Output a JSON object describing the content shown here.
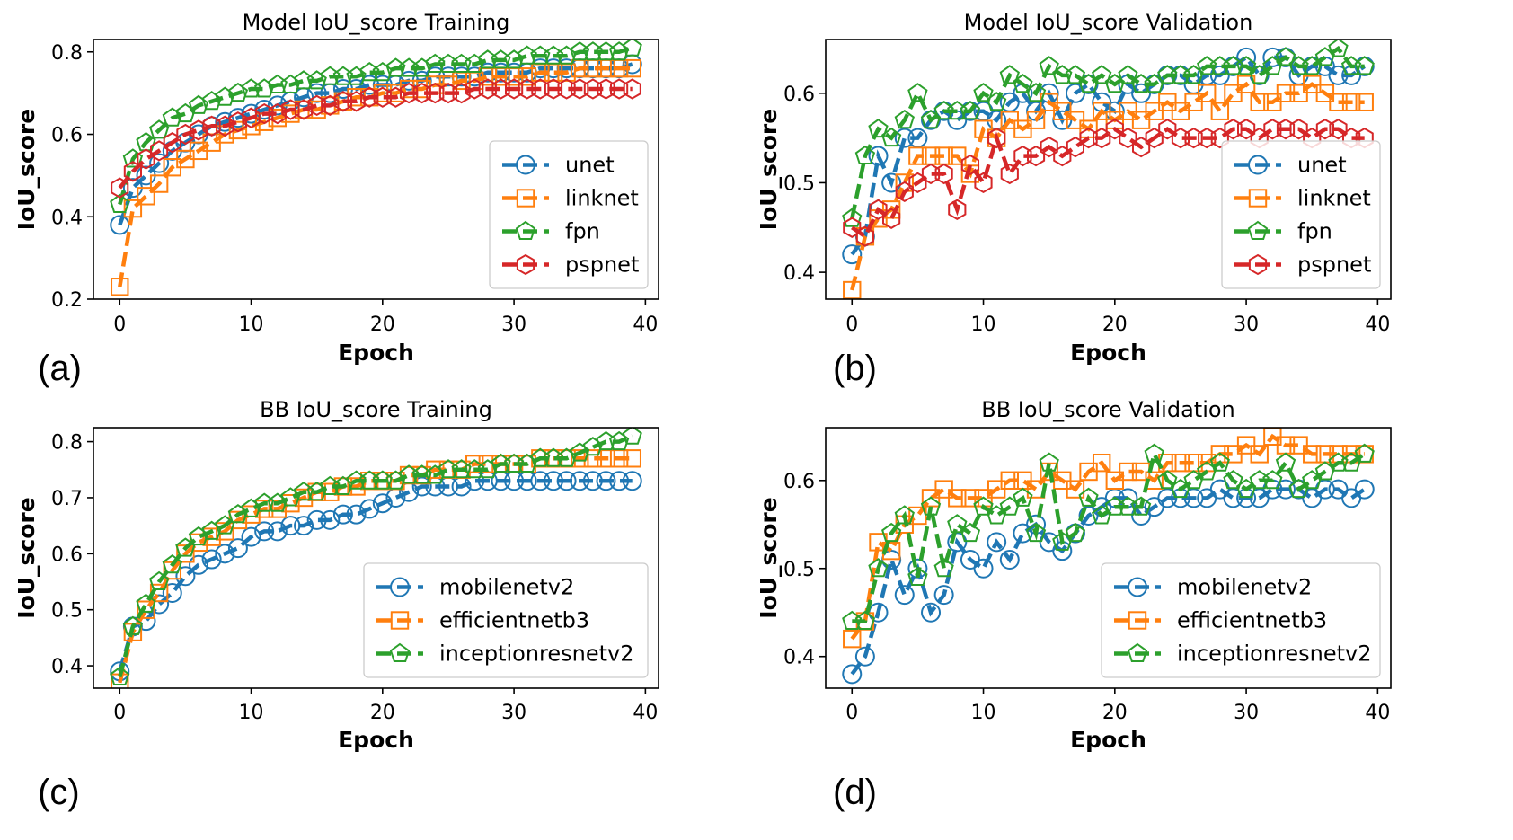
{
  "figure": {
    "panel_labels": [
      "(a)",
      "(b)",
      "(c)",
      "(d)"
    ]
  },
  "colors": {
    "blue": "#1f77b4",
    "orange": "#ff7f0e",
    "green": "#2ca02c",
    "red": "#d62728"
  },
  "chart_data": [
    {
      "type": "line",
      "title": "Model IoU_score Training",
      "xlabel": "Epoch",
      "ylabel": "IoU_score",
      "xlim": [
        -2,
        41
      ],
      "ylim": [
        0.2,
        0.83
      ],
      "xticks": [
        0,
        10,
        20,
        30,
        40
      ],
      "yticks": [
        0.2,
        0.4,
        0.6,
        0.8
      ],
      "ytick_labels": [
        "0.2",
        "0.4",
        "0.6",
        "0.8"
      ],
      "legend": "lower right",
      "grid": false,
      "series": [
        {
          "name": "unet",
          "color": "#1f77b4",
          "marker": "circle",
          "values": [
            0.38,
            0.47,
            0.5,
            0.53,
            0.56,
            0.58,
            0.6,
            0.62,
            0.63,
            0.64,
            0.65,
            0.66,
            0.67,
            0.68,
            0.69,
            0.7,
            0.7,
            0.71,
            0.71,
            0.72,
            0.72,
            0.72,
            0.73,
            0.73,
            0.74,
            0.74,
            0.74,
            0.74,
            0.75,
            0.75,
            0.75,
            0.75,
            0.76,
            0.76,
            0.76,
            0.76,
            0.76,
            0.76,
            0.76,
            0.77
          ]
        },
        {
          "name": "linknet",
          "color": "#ff7f0e",
          "marker": "square",
          "values": [
            0.23,
            0.42,
            0.45,
            0.48,
            0.52,
            0.54,
            0.56,
            0.58,
            0.6,
            0.61,
            0.62,
            0.63,
            0.64,
            0.65,
            0.66,
            0.66,
            0.67,
            0.68,
            0.69,
            0.69,
            0.7,
            0.7,
            0.71,
            0.71,
            0.72,
            0.72,
            0.73,
            0.73,
            0.74,
            0.74,
            0.74,
            0.74,
            0.75,
            0.75,
            0.75,
            0.76,
            0.76,
            0.76,
            0.76,
            0.76
          ]
        },
        {
          "name": "fpn",
          "color": "#2ca02c",
          "marker": "pentagon",
          "values": [
            0.43,
            0.54,
            0.58,
            0.61,
            0.64,
            0.65,
            0.67,
            0.68,
            0.69,
            0.7,
            0.71,
            0.71,
            0.72,
            0.72,
            0.73,
            0.73,
            0.74,
            0.74,
            0.74,
            0.75,
            0.75,
            0.76,
            0.76,
            0.76,
            0.77,
            0.77,
            0.77,
            0.77,
            0.78,
            0.78,
            0.78,
            0.79,
            0.79,
            0.79,
            0.79,
            0.8,
            0.8,
            0.8,
            0.8,
            0.81
          ]
        },
        {
          "name": "pspnet",
          "color": "#d62728",
          "marker": "hexagon",
          "values": [
            0.47,
            0.51,
            0.54,
            0.56,
            0.58,
            0.6,
            0.61,
            0.62,
            0.62,
            0.63,
            0.64,
            0.65,
            0.65,
            0.66,
            0.66,
            0.67,
            0.67,
            0.68,
            0.68,
            0.69,
            0.69,
            0.69,
            0.7,
            0.7,
            0.7,
            0.7,
            0.7,
            0.71,
            0.71,
            0.71,
            0.71,
            0.71,
            0.71,
            0.71,
            0.71,
            0.71,
            0.71,
            0.71,
            0.71,
            0.71
          ]
        }
      ]
    },
    {
      "type": "line",
      "title": "Model IoU_score Validation",
      "xlabel": "Epoch",
      "ylabel": "IoU_score",
      "xlim": [
        -2,
        41
      ],
      "ylim": [
        0.37,
        0.66
      ],
      "xticks": [
        0,
        10,
        20,
        30,
        40
      ],
      "yticks": [
        0.4,
        0.5,
        0.6
      ],
      "ytick_labels": [
        "0.4",
        "0.5",
        "0.6"
      ],
      "legend": "lower right",
      "grid": false,
      "series": [
        {
          "name": "unet",
          "color": "#1f77b4",
          "marker": "circle",
          "values": [
            0.42,
            0.44,
            0.53,
            0.5,
            0.55,
            0.55,
            0.57,
            0.58,
            0.57,
            0.58,
            0.58,
            0.57,
            0.59,
            0.6,
            0.58,
            0.6,
            0.57,
            0.6,
            0.61,
            0.59,
            0.58,
            0.61,
            0.6,
            0.61,
            0.62,
            0.62,
            0.61,
            0.62,
            0.62,
            0.63,
            0.64,
            0.62,
            0.64,
            0.64,
            0.62,
            0.63,
            0.63,
            0.62,
            0.62,
            0.63
          ]
        },
        {
          "name": "linknet",
          "color": "#ff7f0e",
          "marker": "square",
          "values": [
            0.38,
            0.44,
            0.46,
            0.47,
            0.5,
            0.53,
            0.53,
            0.53,
            0.53,
            0.51,
            0.56,
            0.55,
            0.57,
            0.56,
            0.57,
            0.59,
            0.58,
            0.57,
            0.56,
            0.58,
            0.57,
            0.58,
            0.57,
            0.58,
            0.59,
            0.58,
            0.59,
            0.6,
            0.58,
            0.6,
            0.61,
            0.59,
            0.59,
            0.6,
            0.6,
            0.61,
            0.6,
            0.59,
            0.59,
            0.59
          ]
        },
        {
          "name": "fpn",
          "color": "#2ca02c",
          "marker": "pentagon",
          "values": [
            0.46,
            0.53,
            0.56,
            0.55,
            0.57,
            0.6,
            0.57,
            0.58,
            0.58,
            0.58,
            0.6,
            0.59,
            0.62,
            0.61,
            0.6,
            0.63,
            0.62,
            0.62,
            0.61,
            0.62,
            0.61,
            0.62,
            0.61,
            0.61,
            0.62,
            0.62,
            0.62,
            0.63,
            0.63,
            0.63,
            0.63,
            0.62,
            0.63,
            0.64,
            0.63,
            0.63,
            0.64,
            0.65,
            0.63,
            0.63
          ]
        },
        {
          "name": "pspnet",
          "color": "#d62728",
          "marker": "hexagon",
          "values": [
            0.45,
            0.44,
            0.47,
            0.46,
            0.49,
            0.5,
            0.51,
            0.51,
            0.47,
            0.52,
            0.5,
            0.55,
            0.51,
            0.53,
            0.53,
            0.54,
            0.53,
            0.54,
            0.55,
            0.55,
            0.56,
            0.55,
            0.54,
            0.55,
            0.56,
            0.55,
            0.55,
            0.55,
            0.55,
            0.56,
            0.56,
            0.55,
            0.56,
            0.56,
            0.56,
            0.55,
            0.56,
            0.56,
            0.55,
            0.55
          ]
        }
      ]
    },
    {
      "type": "line",
      "title": "BB IoU_score Training",
      "xlabel": "Epoch",
      "ylabel": "IoU_score",
      "xlim": [
        -2,
        41
      ],
      "ylim": [
        0.36,
        0.825
      ],
      "xticks": [
        0,
        10,
        20,
        30,
        40
      ],
      "yticks": [
        0.4,
        0.5,
        0.6,
        0.7,
        0.8
      ],
      "ytick_labels": [
        "0.4",
        "0.5",
        "0.6",
        "0.7",
        "0.8"
      ],
      "legend": "lower right",
      "grid": false,
      "series": [
        {
          "name": "mobilenetv2",
          "color": "#1f77b4",
          "marker": "circle",
          "values": [
            0.39,
            0.47,
            0.48,
            0.51,
            0.53,
            0.56,
            0.58,
            0.59,
            0.6,
            0.61,
            0.63,
            0.64,
            0.64,
            0.65,
            0.65,
            0.66,
            0.66,
            0.67,
            0.67,
            0.68,
            0.69,
            0.7,
            0.71,
            0.72,
            0.72,
            0.72,
            0.72,
            0.73,
            0.73,
            0.73,
            0.73,
            0.73,
            0.73,
            0.73,
            0.73,
            0.73,
            0.73,
            0.73,
            0.73,
            0.73
          ]
        },
        {
          "name": "efficientnetb3",
          "color": "#ff7f0e",
          "marker": "square",
          "values": [
            0.37,
            0.46,
            0.5,
            0.53,
            0.57,
            0.6,
            0.62,
            0.63,
            0.64,
            0.66,
            0.67,
            0.68,
            0.68,
            0.69,
            0.7,
            0.71,
            0.71,
            0.72,
            0.72,
            0.73,
            0.73,
            0.73,
            0.74,
            0.74,
            0.75,
            0.75,
            0.75,
            0.76,
            0.76,
            0.76,
            0.76,
            0.76,
            0.77,
            0.77,
            0.77,
            0.77,
            0.77,
            0.77,
            0.77,
            0.77
          ]
        },
        {
          "name": "inceptionresnetv2",
          "color": "#2ca02c",
          "marker": "pentagon",
          "values": [
            0.38,
            0.47,
            0.51,
            0.55,
            0.58,
            0.61,
            0.63,
            0.64,
            0.65,
            0.67,
            0.68,
            0.69,
            0.69,
            0.7,
            0.71,
            0.71,
            0.72,
            0.72,
            0.73,
            0.73,
            0.73,
            0.73,
            0.74,
            0.74,
            0.74,
            0.75,
            0.75,
            0.75,
            0.75,
            0.76,
            0.76,
            0.76,
            0.77,
            0.77,
            0.77,
            0.78,
            0.79,
            0.8,
            0.8,
            0.81
          ]
        }
      ]
    },
    {
      "type": "line",
      "title": "BB IoU_score Validation",
      "xlabel": "Epoch",
      "ylabel": "IoU_score",
      "xlim": [
        -2,
        41
      ],
      "ylim": [
        0.364,
        0.66
      ],
      "xticks": [
        0,
        10,
        20,
        30,
        40
      ],
      "yticks": [
        0.4,
        0.5,
        0.6
      ],
      "ytick_labels": [
        "0.4",
        "0.5",
        "0.6"
      ],
      "legend": "lower right",
      "grid": false,
      "series": [
        {
          "name": "mobilenetv2",
          "color": "#1f77b4",
          "marker": "circle",
          "values": [
            0.38,
            0.4,
            0.45,
            0.51,
            0.47,
            0.5,
            0.45,
            0.47,
            0.53,
            0.51,
            0.5,
            0.53,
            0.51,
            0.54,
            0.55,
            0.53,
            0.52,
            0.54,
            0.56,
            0.57,
            0.58,
            0.58,
            0.56,
            0.57,
            0.58,
            0.58,
            0.58,
            0.58,
            0.59,
            0.58,
            0.58,
            0.58,
            0.59,
            0.59,
            0.59,
            0.58,
            0.59,
            0.59,
            0.58,
            0.59
          ]
        },
        {
          "name": "efficientnetb3",
          "color": "#ff7f0e",
          "marker": "square",
          "values": [
            0.42,
            0.44,
            0.53,
            0.52,
            0.55,
            0.56,
            0.58,
            0.59,
            0.58,
            0.58,
            0.58,
            0.59,
            0.6,
            0.6,
            0.59,
            0.61,
            0.6,
            0.59,
            0.61,
            0.62,
            0.6,
            0.61,
            0.61,
            0.6,
            0.62,
            0.62,
            0.62,
            0.62,
            0.63,
            0.63,
            0.64,
            0.63,
            0.65,
            0.64,
            0.64,
            0.63,
            0.63,
            0.63,
            0.63,
            0.63
          ]
        },
        {
          "name": "inceptionresnetv2",
          "color": "#2ca02c",
          "marker": "pentagon",
          "values": [
            0.44,
            0.44,
            0.5,
            0.54,
            0.56,
            0.49,
            0.57,
            0.5,
            0.55,
            0.54,
            0.57,
            0.56,
            0.57,
            0.58,
            0.54,
            0.62,
            0.53,
            0.54,
            0.58,
            0.56,
            0.57,
            0.57,
            0.57,
            0.63,
            0.6,
            0.59,
            0.6,
            0.61,
            0.62,
            0.6,
            0.59,
            0.6,
            0.6,
            0.62,
            0.59,
            0.6,
            0.61,
            0.62,
            0.62,
            0.63
          ]
        }
      ]
    }
  ]
}
